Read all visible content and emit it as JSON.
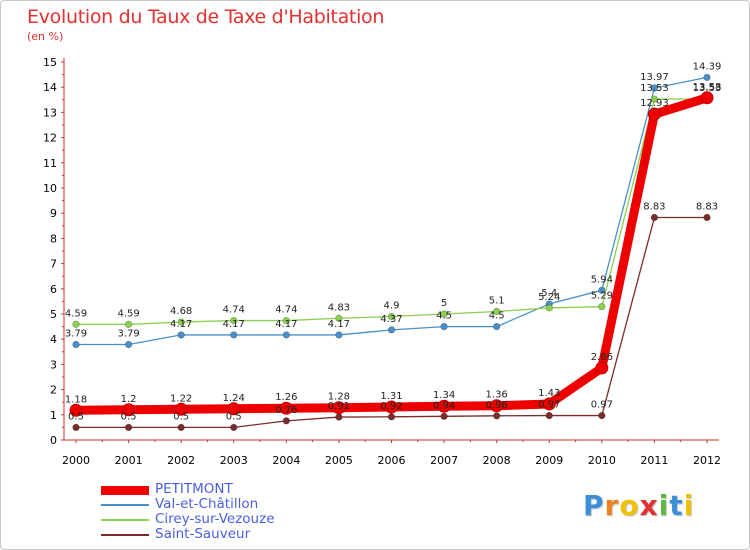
{
  "title": "Evolution du Taux de Taxe d'Habitation",
  "subtitle": "(en %)",
  "chart_data": {
    "type": "line",
    "title": "Evolution du Taux de Taxe d'Habitation",
    "ylabel": "(en %)",
    "x": [
      "2000",
      "2001",
      "2002",
      "2003",
      "2004",
      "2005",
      "2006",
      "2007",
      "2008",
      "2009",
      "2010",
      "2011",
      "2012"
    ],
    "ylim": [
      0,
      15
    ],
    "yticks": [
      0,
      1,
      2,
      3,
      4,
      5,
      6,
      7,
      8,
      9,
      10,
      11,
      12,
      13,
      14,
      15
    ],
    "grid": false,
    "legend_position": "bottom-left",
    "series": [
      {
        "name": "Val-et-Châtillon",
        "color": "#4a90c8",
        "values": [
          3.79,
          3.79,
          4.17,
          4.17,
          4.17,
          4.17,
          4.37,
          4.5,
          4.5,
          5.4,
          5.94,
          13.97,
          14.39
        ],
        "labels": [
          "3.79",
          "3.79",
          "4.17",
          "4.17",
          "4.17",
          "4.17",
          "4.37",
          "4.5",
          "4.5",
          "5.4",
          "5.94",
          "13.97",
          "14.39"
        ]
      },
      {
        "name": "Cirey-sur-Vezouze",
        "color": "#8cd050",
        "values": [
          4.59,
          4.59,
          4.68,
          4.74,
          4.74,
          4.83,
          4.9,
          5,
          5.1,
          5.24,
          5.29,
          13.53,
          13.53
        ],
        "labels": [
          "4.59",
          "4.59",
          "4.68",
          "4.74",
          "4.74",
          "4.83",
          "4.9",
          "5",
          "5.1",
          "5.24",
          "5.29",
          "13.53",
          "13.53"
        ]
      },
      {
        "name": "Saint-Sauveur",
        "color": "#7a2c2c",
        "values": [
          0.5,
          0.5,
          0.5,
          0.5,
          0.76,
          0.91,
          0.92,
          0.94,
          0.96,
          0.97,
          0.97,
          8.83,
          8.83
        ],
        "labels": [
          "0.5",
          "0.5",
          "0.5",
          "0.5",
          "0.76",
          "0.91",
          "0.92",
          "0.94",
          "0.96",
          "0.97",
          "0.97",
          "8.83",
          "8.83"
        ]
      },
      {
        "name": "PETITMONT",
        "color": "#ee0000",
        "values": [
          1.18,
          1.2,
          1.22,
          1.24,
          1.26,
          1.28,
          1.31,
          1.34,
          1.36,
          1.43,
          2.86,
          12.93,
          13.58
        ],
        "labels": [
          "1.18",
          "1.2",
          "1.22",
          "1.24",
          "1.26",
          "1.28",
          "1.31",
          "1.34",
          "1.36",
          "1.43",
          "2.86",
          "12.93",
          "13.58"
        ]
      }
    ]
  },
  "legend": [
    {
      "name": "PETITMONT",
      "color": "#ee0000",
      "thick": true
    },
    {
      "name": "Val-et-Châtillon",
      "color": "#4a90c8",
      "thick": false
    },
    {
      "name": "Cirey-sur-Vezouze",
      "color": "#8cd050",
      "thick": false
    },
    {
      "name": "Saint-Sauveur",
      "color": "#7a2c2c",
      "thick": false
    }
  ],
  "logo": {
    "letters": [
      "P",
      "r",
      "o",
      "x",
      "i",
      "t",
      "i"
    ],
    "colors": [
      "#3a8fd8",
      "#f08020",
      "#f0c000",
      "#e03030",
      "#60b840",
      "#3a8fd8",
      "#f0c000"
    ]
  }
}
